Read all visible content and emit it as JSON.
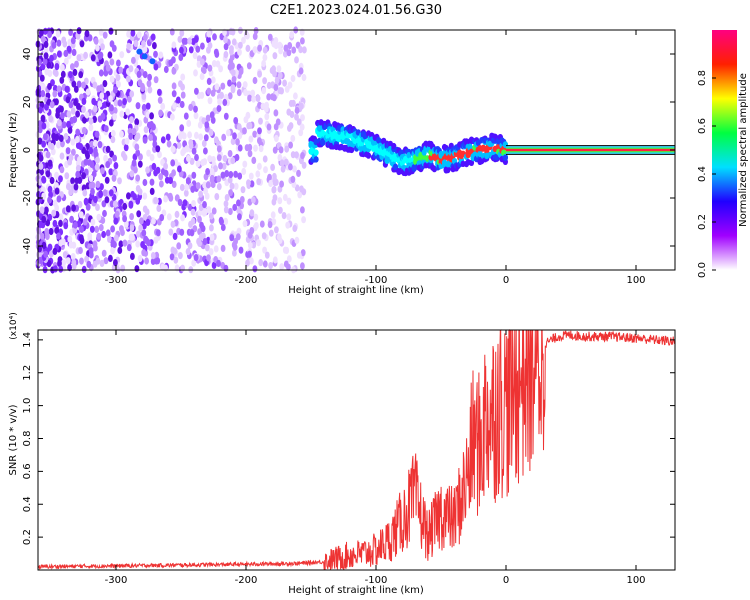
{
  "figure": {
    "title": "C2E1.2023.024.01.56.G30"
  },
  "chart_data": [
    {
      "type": "heatmap",
      "title": "C2E1.2023.024.01.56.G30",
      "xlabel": "Height of straight line (km)",
      "ylabel": "Frequency (Hz)",
      "xlim": [
        -360,
        130
      ],
      "ylim": [
        -50,
        50
      ],
      "x_ticks": [
        -300,
        -200,
        -100,
        0,
        100
      ],
      "y_ticks": [
        -40,
        -20,
        0,
        20,
        40
      ],
      "colorbar": {
        "label": "Normalized spectral amplitude",
        "range": [
          0,
          1
        ],
        "ticks": [
          "0.0",
          "0.2",
          "0.4",
          "0.6",
          "0.8"
        ],
        "colormap": [
          "#ffffff",
          "#a000ff",
          "#2000ff",
          "#00e0ff",
          "#00ff40",
          "#ffff00",
          "#ff2000",
          "#ff0080"
        ]
      },
      "ridge": {
        "x": [
          -145,
          -130,
          -120,
          -110,
          -100,
          -90,
          -80,
          -70,
          -60,
          -50,
          -40,
          -30,
          -20,
          -10,
          0,
          130
        ],
        "y": [
          7,
          6,
          5,
          3,
          1,
          -2,
          -5,
          -4,
          -2,
          -4,
          -3,
          -1,
          0,
          1,
          0,
          0
        ]
      }
    },
    {
      "type": "line",
      "xlabel": "Height of straight line (km)",
      "ylabel": "SNR (10 * v/v)",
      "y_multiplier": "(x10⁴)",
      "xlim": [
        -360,
        130
      ],
      "ylim": [
        0,
        1.46
      ],
      "x_ticks": [
        -300,
        -200,
        -100,
        0,
        100
      ],
      "y_ticks": [
        "0.2",
        "0.4",
        "0.6",
        "0.8",
        "1.0",
        "1.2",
        "1.4"
      ],
      "color": "#ee3333",
      "series": [
        {
          "x": [
            -360,
            -300,
            -250,
            -200,
            -160,
            -140,
            -130,
            -120,
            -110,
            -100,
            -90,
            -80,
            -70,
            -60,
            -50,
            -40,
            -30,
            -25,
            -20,
            -15,
            -10,
            -5,
            0,
            10,
            20,
            30,
            40,
            50,
            60,
            80,
            100,
            115,
            130
          ],
          "y": [
            0.02,
            0.025,
            0.03,
            0.035,
            0.04,
            0.05,
            0.07,
            0.09,
            0.1,
            0.12,
            0.18,
            0.3,
            0.45,
            0.2,
            0.35,
            0.3,
            0.55,
            0.8,
            0.75,
            0.95,
            0.95,
            1.05,
            1.0,
            1.2,
            1.3,
            1.38,
            1.42,
            1.43,
            1.42,
            1.42,
            1.41,
            1.4,
            1.39
          ]
        }
      ]
    }
  ]
}
